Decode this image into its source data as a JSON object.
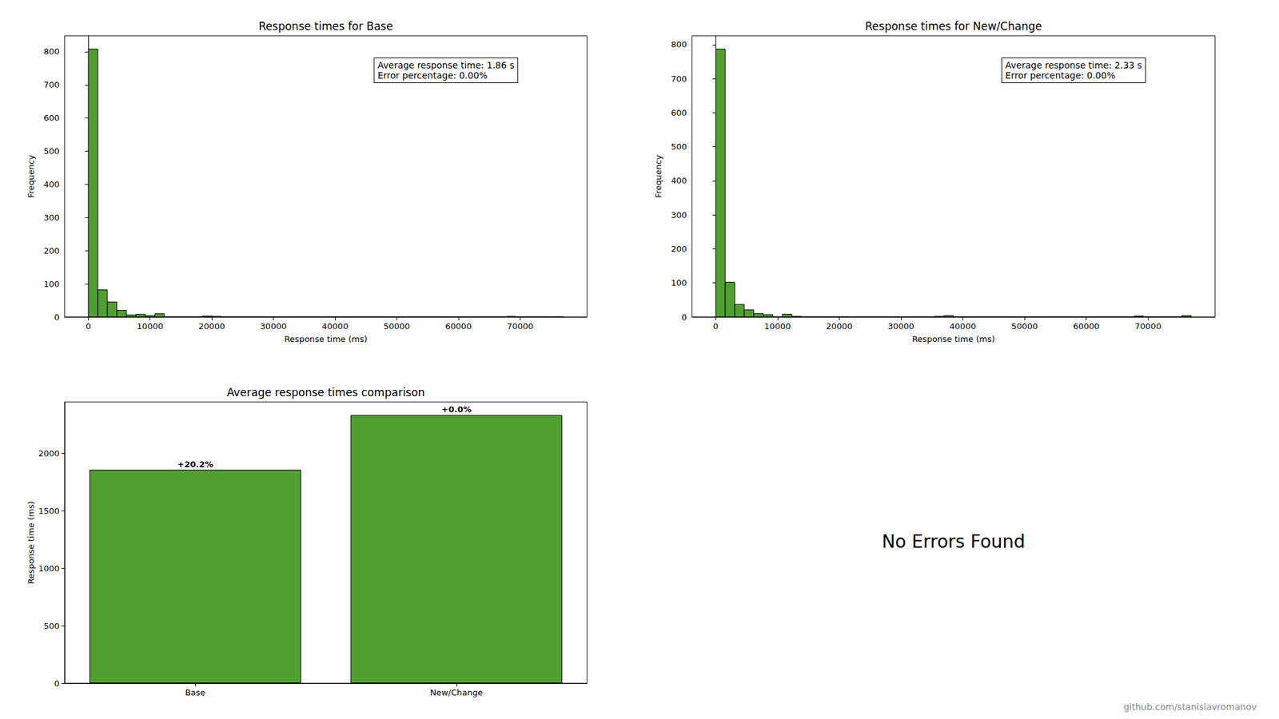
{
  "chart_data": [
    {
      "type": "histogram",
      "title": "Response times for Base",
      "xlabel": "Response time (ms)",
      "ylabel": "Frequency",
      "bins": [
        0,
        1540,
        3080,
        4620,
        6160,
        7700,
        9240,
        10780,
        12320,
        13860,
        15400,
        16940,
        18480,
        20020,
        21560,
        23100,
        24640,
        26180,
        27720,
        29260,
        30800,
        32340,
        33880,
        35420,
        36960,
        38500,
        40040,
        41580,
        43120,
        44660,
        46200,
        47740,
        49280,
        50820,
        52360,
        53900,
        55440,
        56980,
        58520,
        60060,
        61600,
        63140,
        64680,
        66220,
        67760,
        69300,
        70840,
        72380,
        73920,
        75460,
        77000
      ],
      "counts": [
        808,
        82,
        45,
        20,
        6,
        8,
        4,
        10,
        0,
        0,
        0,
        0,
        3,
        2,
        0,
        0,
        0,
        0,
        0,
        0,
        0,
        0,
        0,
        0,
        0,
        0,
        0,
        0,
        0,
        0,
        0,
        0,
        0,
        0,
        0,
        0,
        0,
        0,
        0,
        0,
        0,
        0,
        0,
        0,
        2,
        0,
        0,
        0,
        0,
        1
      ],
      "color": "#519e31",
      "xlim": [
        -3850,
        80850
      ],
      "xticks": [
        0,
        10000,
        20000,
        30000,
        40000,
        50000,
        60000,
        70000
      ],
      "ylim": [
        0,
        848
      ],
      "yticks": [
        0,
        100,
        200,
        300,
        400,
        500,
        600,
        700,
        800
      ],
      "grid": false,
      "annotation": [
        "Average response time: 1.86 s",
        "Error percentage: 0.00%"
      ]
    },
    {
      "type": "histogram",
      "title": "Response times for New/Change",
      "xlabel": "Response time (ms)",
      "ylabel": "Frequency",
      "bins": [
        0,
        1540,
        3080,
        4620,
        6160,
        7700,
        9240,
        10780,
        12320,
        13860,
        15400,
        16940,
        18480,
        20020,
        21560,
        23100,
        24640,
        26180,
        27720,
        29260,
        30800,
        32340,
        33880,
        35420,
        36960,
        38500,
        40040,
        41580,
        43120,
        44660,
        46200,
        47740,
        49280,
        50820,
        52360,
        53900,
        55440,
        56980,
        58520,
        60060,
        61600,
        63140,
        64680,
        66220,
        67760,
        69300,
        70840,
        72380,
        73920,
        75460,
        77000
      ],
      "counts": [
        787,
        102,
        37,
        21,
        10,
        7,
        0,
        8,
        2,
        0,
        0,
        0,
        0,
        1,
        0,
        0,
        0,
        0,
        0,
        0,
        0,
        0,
        0,
        2,
        4,
        0,
        0,
        0,
        0,
        0,
        0,
        0,
        0,
        0,
        0,
        0,
        0,
        0,
        0,
        0,
        0,
        0,
        0,
        0,
        3,
        0,
        0,
        0,
        0,
        4
      ],
      "color": "#519e31",
      "xlim": [
        -3850,
        80850
      ],
      "xticks": [
        0,
        10000,
        20000,
        30000,
        40000,
        50000,
        60000,
        70000
      ],
      "ylim": [
        0,
        826
      ],
      "yticks": [
        0,
        100,
        200,
        300,
        400,
        500,
        600,
        700,
        800
      ],
      "grid": false,
      "annotation": [
        "Average response time: 2.33 s",
        "Error percentage: 0.00%"
      ]
    },
    {
      "type": "bar",
      "title": "Average response times comparison",
      "ylabel": "Response time (ms)",
      "categories": [
        "Base",
        "New/Change"
      ],
      "values": [
        1858,
        2333
      ],
      "bar_annotations": [
        "+20.2%",
        "+0.0%"
      ],
      "color": "#519e31",
      "ylim": [
        0,
        2447
      ],
      "yticks": [
        0,
        500,
        1000,
        1500,
        2000
      ],
      "grid": false
    }
  ],
  "error_panel": {
    "text": "No Errors Found"
  },
  "footer": {
    "text": "github.com/stanislavromanov"
  }
}
